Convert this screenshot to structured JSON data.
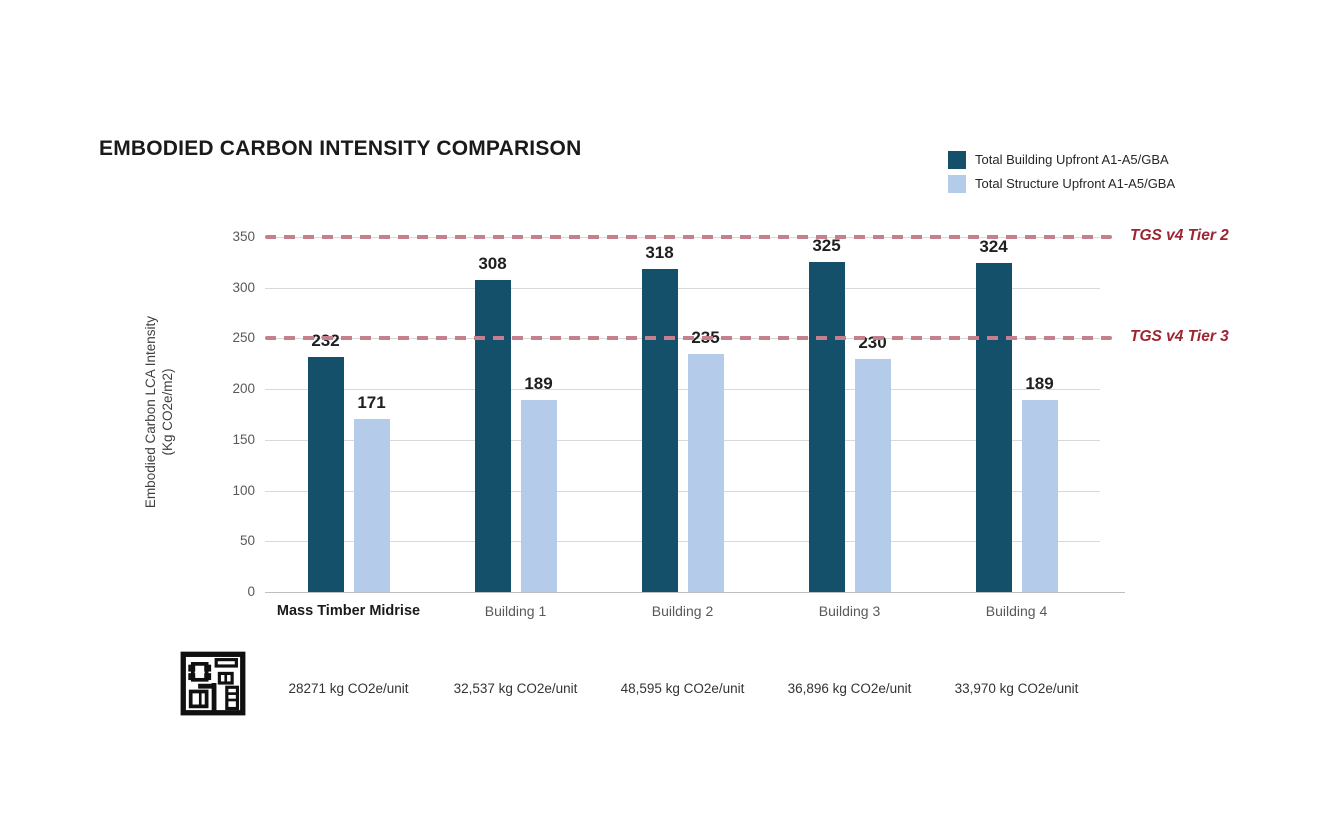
{
  "title": "EMBODIED CARBON INTENSITY COMPARISON",
  "legend": [
    {
      "label": "Total Building Upfront A1-A5/GBA",
      "color": "#15506b"
    },
    {
      "label": "Total Structure Upfront A1-A5/GBA",
      "color": "#b4cce9"
    }
  ],
  "y_axis": {
    "title_line1": "Embodied Carbon LCA Intensity",
    "title_line2": "(Kg CO2e/m2)",
    "ticks": [
      0,
      50,
      100,
      150,
      200,
      250,
      300,
      350
    ]
  },
  "chart_data": {
    "type": "bar",
    "title": "EMBODIED CARBON INTENSITY COMPARISON",
    "ylabel": "Embodied Carbon LCA Intensity (Kg CO2e/m2)",
    "ylim": [
      0,
      350
    ],
    "grid": true,
    "legend_position": "top-right",
    "categories": [
      "Mass Timber Midrise",
      "Building 1",
      "Building 2",
      "Building 3",
      "Building 4"
    ],
    "emphasized_category_index": 0,
    "series": [
      {
        "name": "Total Building Upfront A1-A5/GBA",
        "color": "#15506b",
        "values": [
          232,
          308,
          318,
          325,
          324
        ]
      },
      {
        "name": "Total Structure Upfront A1-A5/GBA",
        "color": "#b4cce9",
        "values": [
          171,
          189,
          235,
          230,
          189
        ]
      }
    ],
    "reference_lines": [
      {
        "label": "TGS v4 Tier 2",
        "value": 350
      },
      {
        "label": "TGS v4 Tier 3",
        "value": 250
      }
    ]
  },
  "tier_style": {
    "line_color": "#c67f8d",
    "text_color": "#9c2531"
  },
  "footer": {
    "units": [
      "28271 kg CO2e/unit",
      "32,537 kg CO2e/unit",
      "48,595 kg CO2e/unit",
      "36,896 kg CO2e/unit",
      "33,970 kg CO2e/unit"
    ],
    "icon": "floor-plan-icon"
  }
}
